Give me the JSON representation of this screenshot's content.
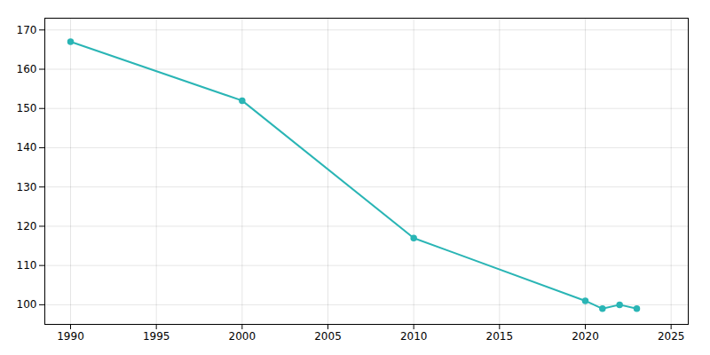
{
  "chart_data": {
    "type": "line",
    "x": [
      1990,
      2000,
      2010,
      2020,
      2021,
      2022,
      2023
    ],
    "values": [
      167,
      152,
      117,
      101,
      99,
      100,
      99
    ],
    "color": "#2ab5b5",
    "marker": "circle",
    "xlim": [
      1988.5,
      2026
    ],
    "ylim": [
      95,
      173
    ],
    "xticks": [
      1990,
      1995,
      2000,
      2005,
      2010,
      2015,
      2020,
      2025
    ],
    "yticks": [
      100,
      110,
      120,
      130,
      140,
      150,
      160,
      170
    ],
    "grid": true
  }
}
